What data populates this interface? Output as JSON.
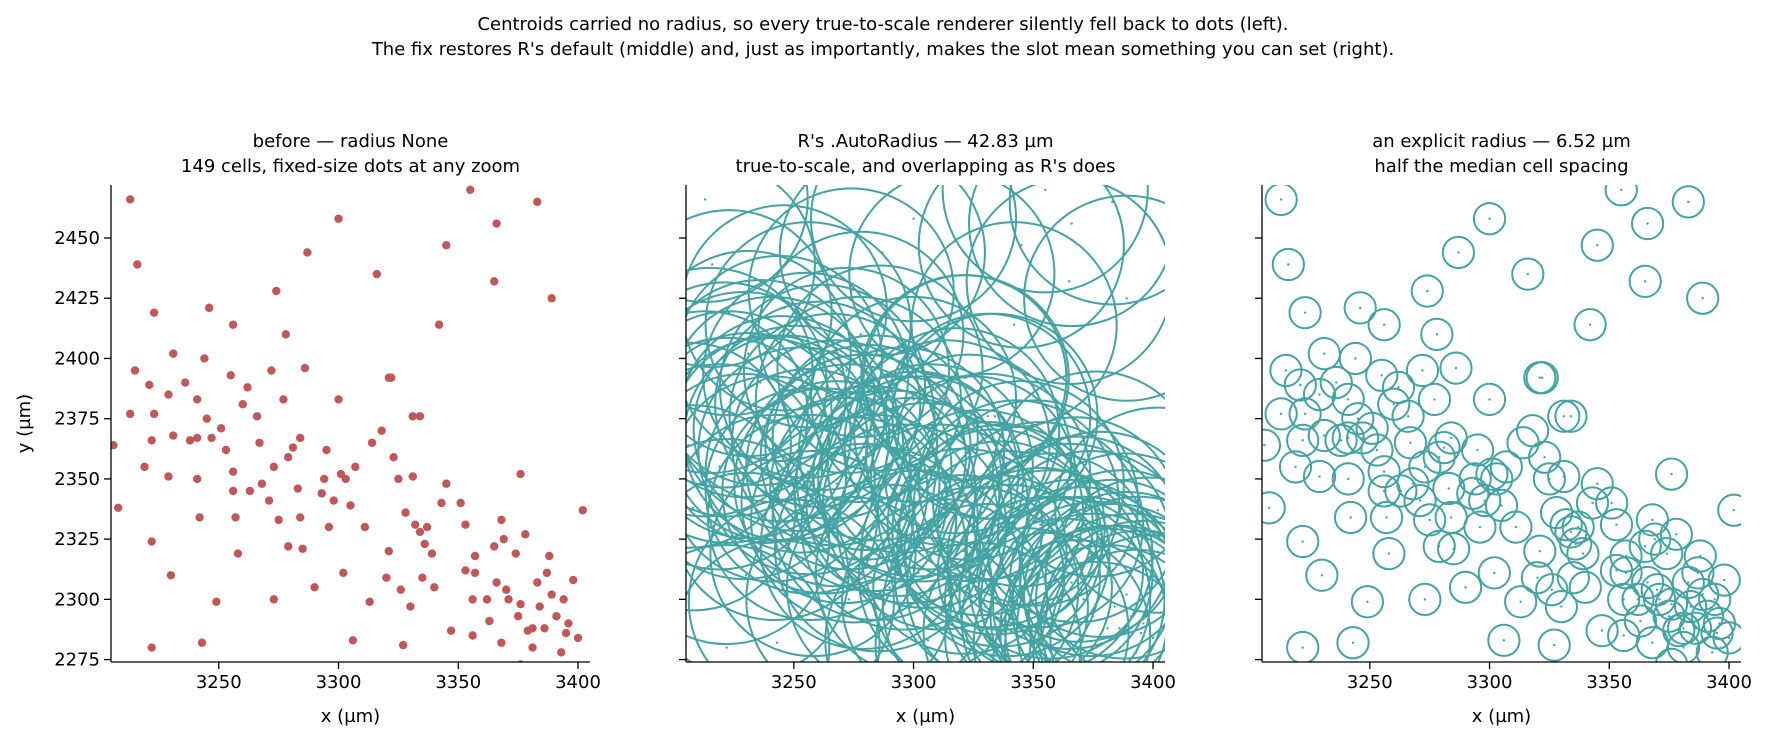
{
  "figure": {
    "suptitle": [
      "Centroids carried no radius, so every true-to-scale renderer silently fell back to dots (left).",
      "The fix restores R's default (middle) and, just as importantly, makes the slot mean something you can set (right)."
    ]
  },
  "colors": {
    "dots": "#c0585a",
    "circles": "#46a3a3",
    "axis": "#000000"
  },
  "chart_data": [
    {
      "type": "scatter",
      "title": [
        "before — radius None",
        "149 cells, fixed-size dots at any zoom"
      ],
      "xlabel": "x (µm)",
      "ylabel": "y (µm)",
      "xlim": [
        3205,
        3405
      ],
      "ylim": [
        2274,
        2472
      ],
      "xticks": [
        3250,
        3300,
        3350,
        3400
      ],
      "yticks": [
        2275,
        2300,
        2325,
        2350,
        2375,
        2400,
        2425,
        2450
      ],
      "marker": "dot",
      "radius": null,
      "grid": false
    },
    {
      "type": "scatter",
      "title": [
        "R's .AutoRadius — 42.83 µm",
        "true-to-scale, and overlapping as R's does"
      ],
      "xlabel": "x (µm)",
      "ylabel": "",
      "xlim": [
        3205,
        3405
      ],
      "ylim": [
        2274,
        2472
      ],
      "xticks": [
        3250,
        3300,
        3350,
        3400
      ],
      "yticks": [
        2275,
        2300,
        2325,
        2350,
        2375,
        2400,
        2425,
        2450
      ],
      "marker": "circle",
      "radius": 42.83,
      "grid": false
    },
    {
      "type": "scatter",
      "title": [
        "an explicit radius — 6.52 µm",
        "half the median cell spacing"
      ],
      "xlabel": "x (µm)",
      "ylabel": "",
      "xlim": [
        3205,
        3405
      ],
      "ylim": [
        2274,
        2472
      ],
      "xticks": [
        3250,
        3300,
        3350,
        3400
      ],
      "yticks": [
        2275,
        2300,
        2325,
        2350,
        2375,
        2400,
        2425,
        2450
      ],
      "marker": "circle",
      "radius": 6.52,
      "grid": false
    }
  ],
  "points": {
    "x": [
      3213,
      3216,
      3223,
      3231,
      3246,
      3256,
      3274,
      3278,
      3287,
      3300,
      3316,
      3321,
      3334,
      3342,
      3345,
      3355,
      3366,
      3365,
      3383,
      3389,
      3376,
      3206,
      3208,
      3213,
      3215,
      3219,
      3221,
      3222,
      3223,
      3222,
      3222,
      3229,
      3229,
      3230,
      3231,
      3236,
      3238,
      3241,
      3241,
      3241,
      3242,
      3243,
      3244,
      3245,
      3247,
      3249,
      3251,
      3253,
      3255,
      3256,
      3256,
      3257,
      3258,
      3260,
      3262,
      3263,
      3266,
      3267,
      3268,
      3271,
      3272,
      3273,
      3273,
      3275,
      3277,
      3279,
      3279,
      3281,
      3283,
      3284,
      3284,
      3285,
      3286,
      3290,
      3293,
      3294,
      3295,
      3296,
      3298,
      3300,
      3301,
      3302,
      3303,
      3305,
      3306,
      3307,
      3311,
      3313,
      3314,
      3318,
      3320,
      3321,
      3322,
      3323,
      3325,
      3326,
      3327,
      3328,
      3330,
      3331,
      3331,
      3332,
      3334,
      3335,
      3336,
      3337,
      3339,
      3340,
      3343,
      3345,
      3347,
      3351,
      3353,
      3353,
      3356,
      3356,
      3357,
      3357,
      3362,
      3363,
      3365,
      3366,
      3368,
      3368,
      3369,
      3370,
      3371,
      3374,
      3375,
      3376,
      3378,
      3379,
      3381,
      3381,
      3383,
      3384,
      3386,
      3387,
      3388,
      3389,
      3391,
      3393,
      3394,
      3395,
      3396,
      3398,
      3400,
      3402,
      3376
    ],
    "y": [
      2466,
      2439,
      2419,
      2402,
      2421,
      2414,
      2428,
      2410,
      2444,
      2458,
      2435,
      2392,
      2376,
      2414,
      2447,
      2470,
      2456,
      2432,
      2465,
      2425,
      2352,
      2364,
      2338,
      2377,
      2395,
      2355,
      2389,
      2366,
      2377,
      2324,
      2280,
      2385,
      2351,
      2310,
      2368,
      2390,
      2366,
      2367,
      2383,
      2350,
      2334,
      2282,
      2400,
      2375,
      2367,
      2299,
      2371,
      2362,
      2393,
      2353,
      2345,
      2334,
      2319,
      2381,
      2388,
      2345,
      2376,
      2365,
      2348,
      2341,
      2395,
      2300,
      2355,
      2333,
      2383,
      2322,
      2359,
      2363,
      2346,
      2367,
      2334,
      2321,
      2396,
      2305,
      2344,
      2350,
      2362,
      2330,
      2341,
      2383,
      2352,
      2311,
      2350,
      2339,
      2283,
      2355,
      2330,
      2299,
      2365,
      2370,
      2309,
      2320,
      2392,
      2359,
      2350,
      2304,
      2281,
      2336,
      2297,
      2351,
      2376,
      2331,
      2328,
      2309,
      2323,
      2330,
      2319,
      2305,
      2340,
      2348,
      2287,
      2340,
      2331,
      2312,
      2300,
      2285,
      2318,
      2311,
      2300,
      2291,
      2322,
      2307,
      2333,
      2282,
      2325,
      2304,
      2300,
      2319,
      2293,
      2298,
      2327,
      2287,
      2288,
      2280,
      2307,
      2297,
      2288,
      2311,
      2318,
      2302,
      2293,
      2278,
      2300,
      2286,
      2290,
      2308,
      2284,
      2337,
      2273
    ]
  },
  "axis_labels": {
    "x": "x (µm)",
    "y": "y (µm)"
  }
}
